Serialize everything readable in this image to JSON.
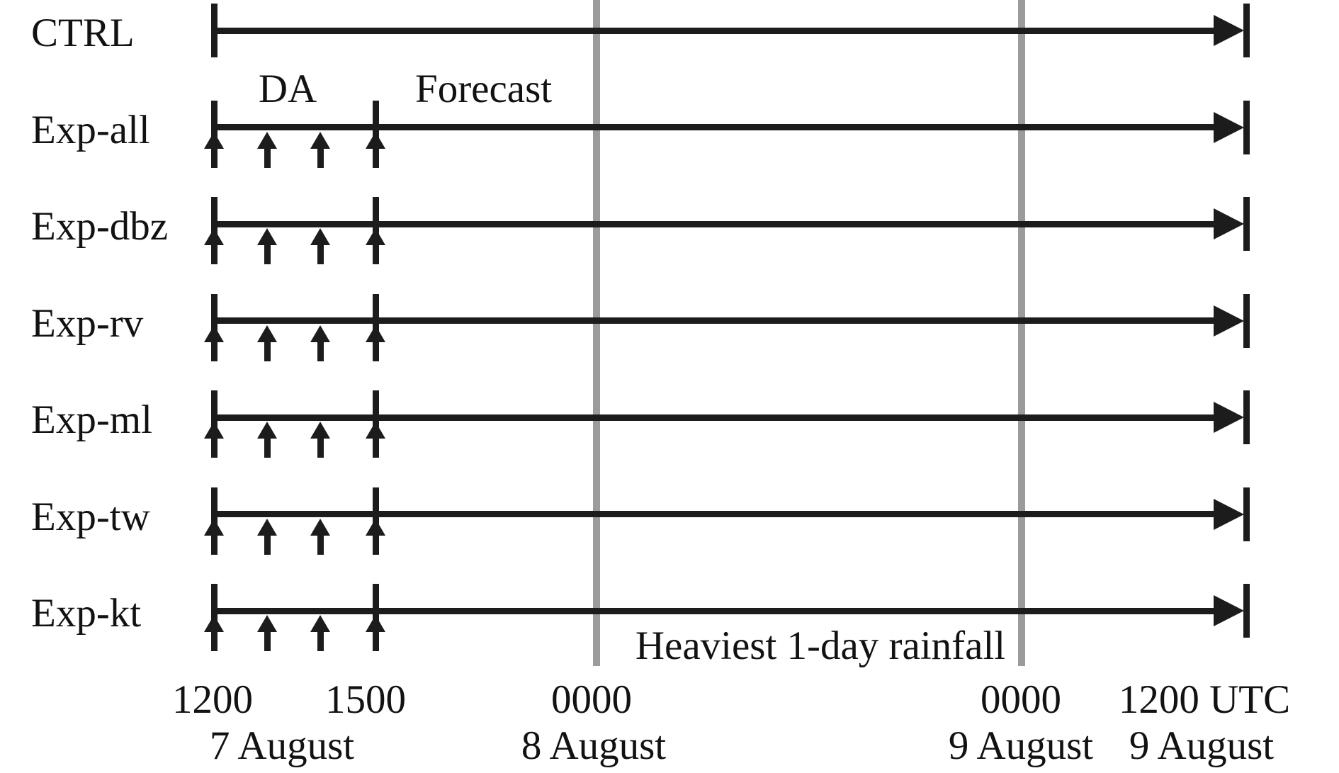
{
  "figure": {
    "da_label": "DA",
    "forecast_label": "Forecast",
    "rainfall_label": "Heaviest 1-day rainfall"
  },
  "rows": [
    {
      "label": "CTRL",
      "da_window": false
    },
    {
      "label": "Exp-all",
      "da_window": true
    },
    {
      "label": "Exp-dbz",
      "da_window": true
    },
    {
      "label": "Exp-rv",
      "da_window": true
    },
    {
      "label": "Exp-ml",
      "da_window": true
    },
    {
      "label": "Exp-tw",
      "da_window": true
    },
    {
      "label": "Exp-kt",
      "da_window": true
    }
  ],
  "da_arrow_count": 4,
  "axis": {
    "times": [
      "1200",
      "1500",
      "0000",
      "0000",
      "1200 UTC"
    ],
    "dates": [
      "7 August",
      "8 August",
      "9 August",
      "9 August"
    ]
  },
  "colors": {
    "line": "#1c1c1c",
    "gridline": "#9b9b9b",
    "background": "#ffffff",
    "text": "#121212"
  }
}
